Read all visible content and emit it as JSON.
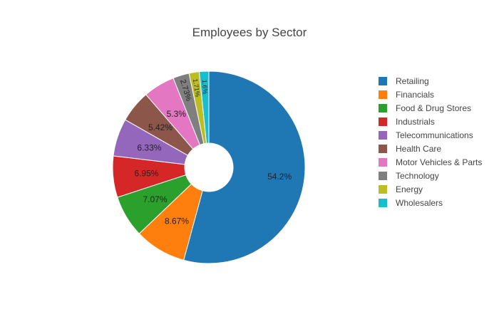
{
  "chart_data": {
    "type": "pie",
    "title": "Employees by Sector",
    "hole": true,
    "legend_position": "right",
    "slices": [
      {
        "label": "Retailing",
        "value": 54.2,
        "text": "54.2%",
        "color": "#1f77b4"
      },
      {
        "label": "Financials",
        "value": 8.67,
        "text": "8.67%",
        "color": "#ff7f0e"
      },
      {
        "label": "Food & Drug Stores",
        "value": 7.07,
        "text": "7.07%",
        "color": "#2ca02c"
      },
      {
        "label": "Industrials",
        "value": 6.95,
        "text": "6.95%",
        "color": "#d62728"
      },
      {
        "label": "Telecommunications",
        "value": 6.33,
        "text": "6.33%",
        "color": "#9467bd"
      },
      {
        "label": "Health Care",
        "value": 5.42,
        "text": "5.42%",
        "color": "#8c564b"
      },
      {
        "label": "Motor Vehicles & Parts",
        "value": 5.3,
        "text": "5.3%",
        "color": "#e377c2"
      },
      {
        "label": "Technology",
        "value": 2.73,
        "text": "2.73%",
        "color": "#7f7f7f"
      },
      {
        "label": "Energy",
        "value": 1.71,
        "text": "1.71%",
        "color": "#bcbd22"
      },
      {
        "label": "Wholesalers",
        "value": 1.6,
        "text": "1.6%",
        "color": "#17becf"
      }
    ]
  }
}
